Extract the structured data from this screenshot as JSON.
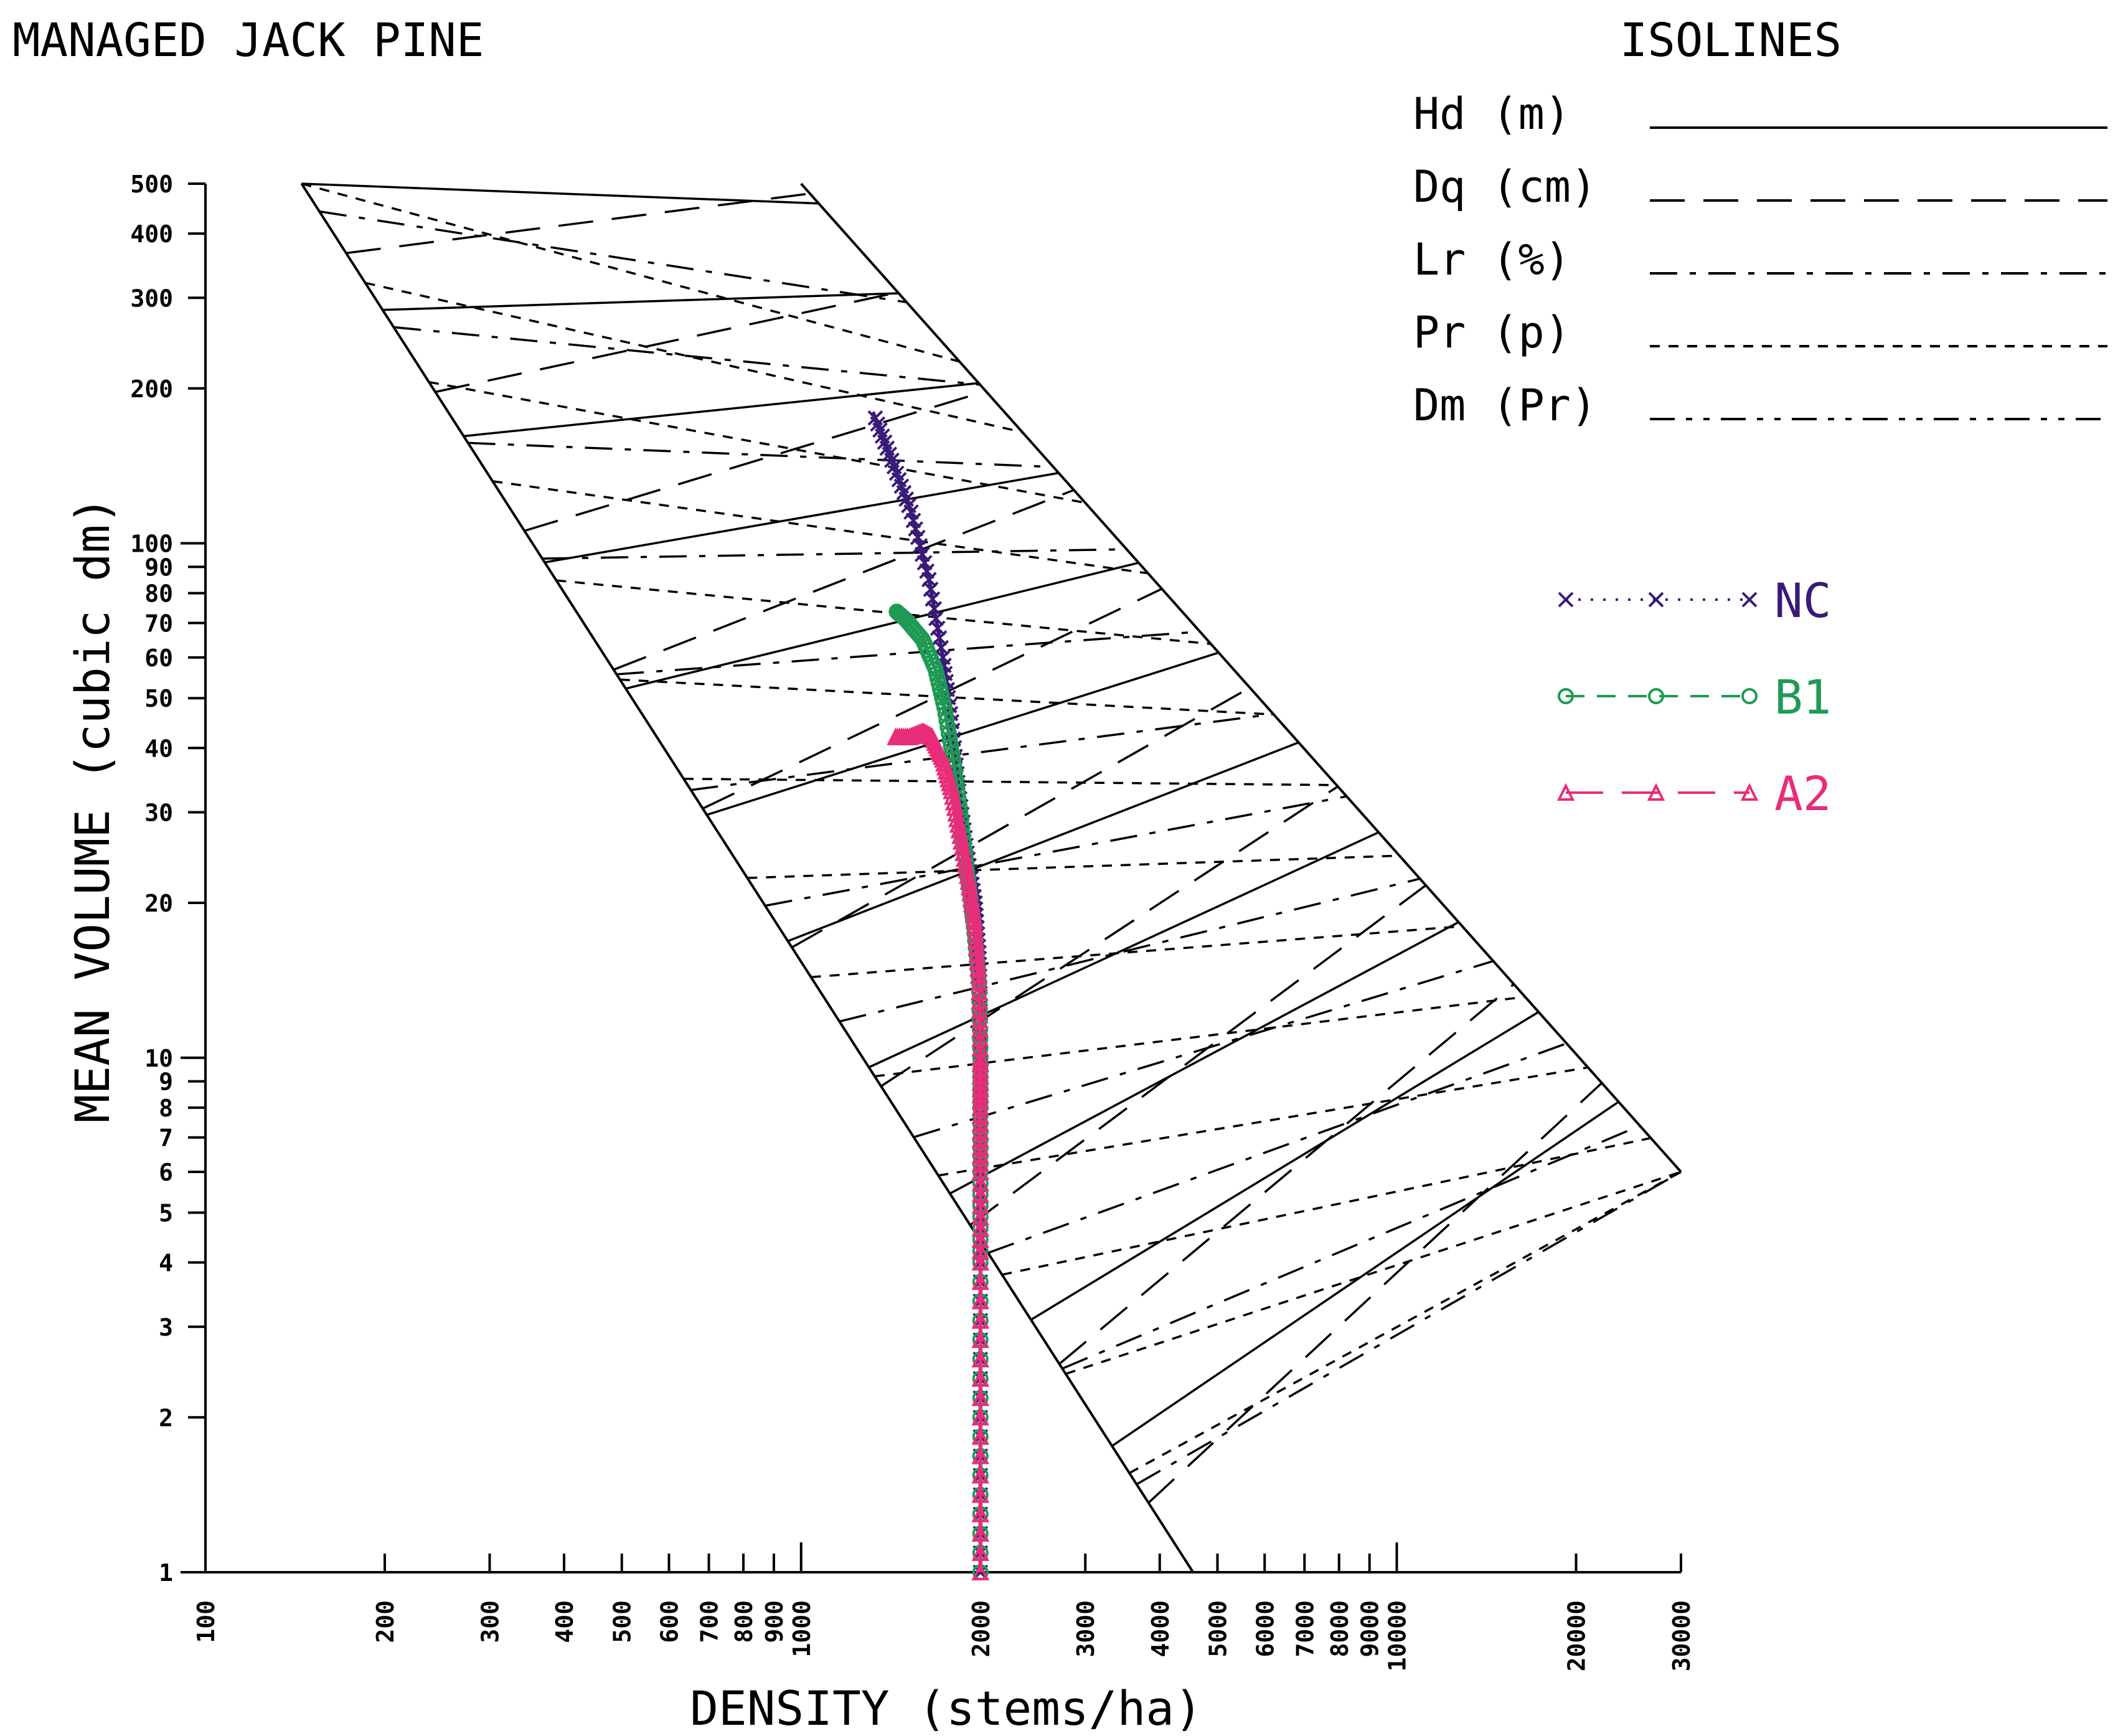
{
  "chart_data": {
    "type": "line",
    "title": "MANAGED JACK PINE",
    "xlabel": "DENSITY (stems/ha)",
    "ylabel": "MEAN VOLUME (cubic dm)",
    "x_scale": "log",
    "y_scale": "log",
    "xlim": [
      100,
      30000
    ],
    "ylim": [
      1,
      500
    ],
    "x_ticks": [
      100,
      200,
      300,
      400,
      500,
      600,
      700,
      800,
      900,
      1000,
      2000,
      3000,
      4000,
      5000,
      6000,
      7000,
      8000,
      9000,
      10000,
      20000,
      30000
    ],
    "x_tick_labels": [
      "100",
      "200",
      "300",
      "400",
      "500",
      "600",
      "700",
      "800",
      "900",
      "1000",
      "2000",
      "3000",
      "4000",
      "5000",
      "6000",
      "7000",
      "8000",
      "9000",
      "10000",
      "20000",
      "30000"
    ],
    "y_ticks": [
      1,
      2,
      3,
      4,
      5,
      6,
      7,
      8,
      9,
      10,
      20,
      30,
      40,
      50,
      60,
      70,
      80,
      90,
      100,
      200,
      300,
      400,
      500
    ],
    "y_tick_labels": [
      "1",
      "2",
      "3",
      "4",
      "5",
      "6",
      "7",
      "8",
      "9",
      "10",
      "20",
      "30",
      "40",
      "50",
      "60",
      "70",
      "80",
      "90",
      "100",
      "200",
      "300",
      "400",
      "500"
    ],
    "grid": false,
    "legend_placement": "right",
    "isolines_legend": {
      "title": "ISOLINES",
      "entries": [
        {
          "label": "Hd  (m)",
          "dash": "solid"
        },
        {
          "label": "Dq  (cm)",
          "dash": "long-dash"
        },
        {
          "label": "Lr  (%)",
          "dash": "dash-dot"
        },
        {
          "label": "Pr  (p)",
          "dash": "short-dash"
        },
        {
          "label": "Dm  (Pr)",
          "dash": "dash-dot-dot"
        }
      ]
    },
    "boundaries": {
      "left": [
        [
          145,
          500
        ],
        [
          4550,
          1
        ]
      ],
      "right": [
        [
          1000,
          500
        ],
        [
          30000,
          6
        ]
      ]
    },
    "series": [
      {
        "name": "NC",
        "color": "#3a1a78",
        "marker": "x",
        "x": [
          2000,
          2000,
          2000,
          2000,
          2000,
          2000,
          2000,
          1990,
          1960,
          1900,
          1840,
          1790,
          1730,
          1640,
          1530,
          1420,
          1320
        ],
        "y": [
          1,
          2,
          4,
          6,
          8,
          10,
          13,
          16,
          20,
          25,
          33,
          45,
          60,
          85,
          115,
          145,
          180
        ]
      },
      {
        "name": "B1",
        "color": "#1e9a55",
        "marker": "o",
        "x": [
          2000,
          2000,
          2000,
          2000,
          2000,
          2000,
          1990,
          1950,
          1900,
          1850,
          1800,
          1740,
          1680,
          1600,
          1500,
          1440
        ],
        "y": [
          1,
          2,
          4,
          6,
          8,
          10,
          14,
          18,
          23,
          30,
          38,
          48,
          57,
          65,
          71,
          74
        ]
      },
      {
        "name": "A2",
        "color": "#e82d7a",
        "marker": "triangle",
        "x": [
          2000,
          2000,
          2000,
          2000,
          2000,
          2000,
          1990,
          1960,
          1910,
          1850,
          1790,
          1730,
          1660,
          1600,
          1520,
          1430
        ],
        "y": [
          1,
          2,
          4,
          6,
          8,
          10,
          14,
          18,
          22,
          27,
          33,
          38,
          42,
          43,
          42,
          42
        ]
      }
    ]
  }
}
